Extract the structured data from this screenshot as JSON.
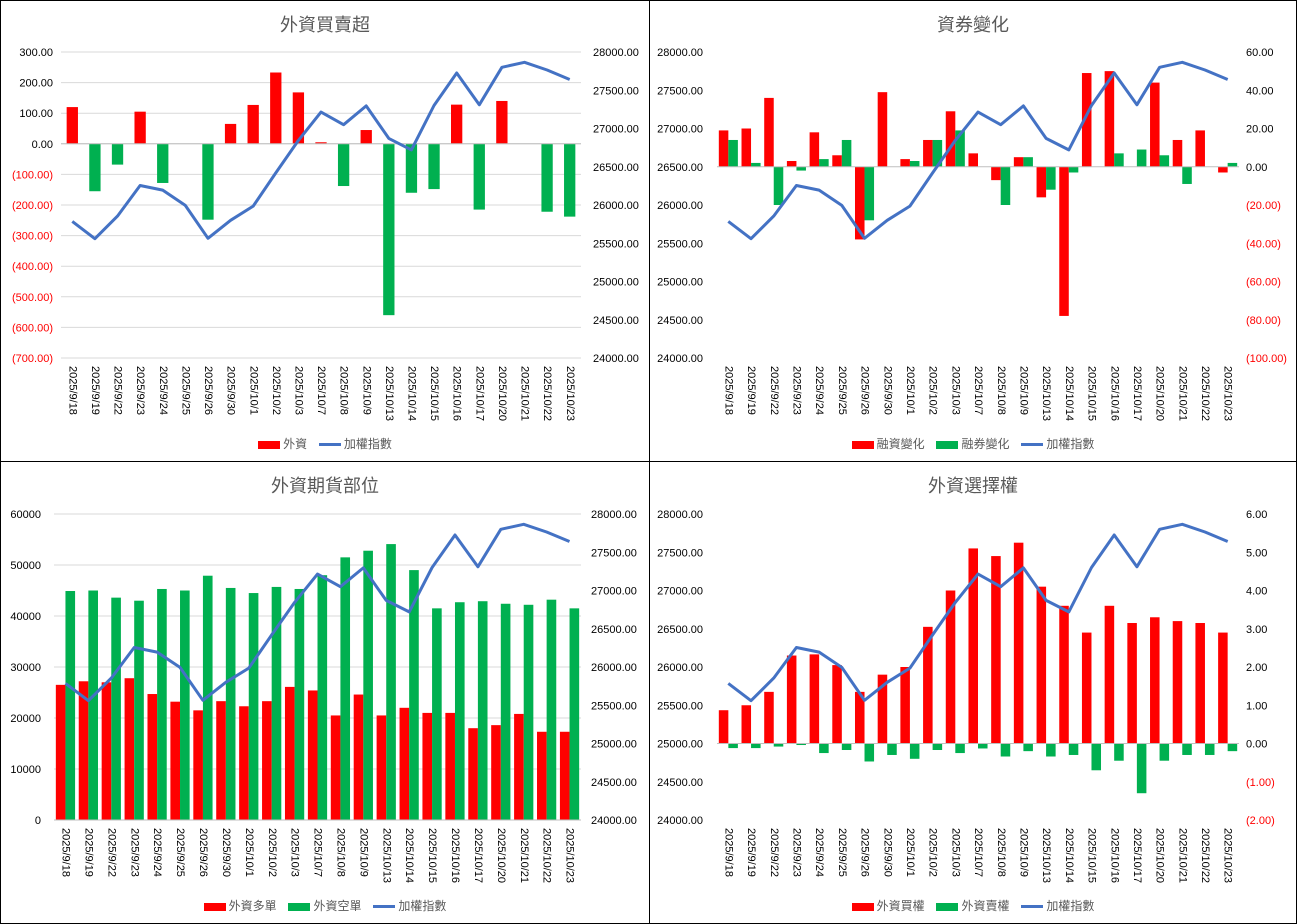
{
  "chart_data": [
    {
      "type": "bar",
      "title": "外資買賣超",
      "categories": [
        "2025/9/18",
        "2025/9/19",
        "2025/9/22",
        "2025/9/23",
        "2025/9/24",
        "2025/9/25",
        "2025/9/26",
        "2025/9/30",
        "2025/10/1",
        "2025/10/2",
        "2025/10/3",
        "2025/10/7",
        "2025/10/8",
        "2025/10/9",
        "2025/10/13",
        "2025/10/14",
        "2025/10/15",
        "2025/10/16",
        "2025/10/17",
        "2025/10/20",
        "2025/10/21",
        "2025/10/22",
        "2025/10/23"
      ],
      "series": [
        {
          "name": "外資",
          "kind": "bar",
          "axis": "left",
          "color_mode": "sign",
          "values": [
            120,
            -155,
            -68,
            105,
            -128,
            0,
            -248,
            65,
            127,
            233,
            168,
            5,
            -138,
            45,
            -560,
            -160,
            -148,
            128,
            -215,
            140,
            0,
            -222,
            -238
          ]
        }
      ],
      "line": {
        "name": "加權指數",
        "axis": "right",
        "color": "#4472C4",
        "values": [
          25785,
          25560,
          25855,
          26255,
          26195,
          25995,
          25565,
          25800,
          25985,
          26420,
          26845,
          27215,
          27050,
          27295,
          26870,
          26720,
          27300,
          27725,
          27310,
          27800,
          27865,
          27765,
          27640
        ]
      },
      "left_axis": {
        "min": -700,
        "max": 300,
        "step": 100,
        "decimals": 2,
        "neg_paren": true
      },
      "right_axis": {
        "min": 24000,
        "max": 28000,
        "step": 500,
        "decimals": 2,
        "neg_paren": false
      },
      "colors": {
        "pos": "#FF0000",
        "neg": "#00B050",
        "legend_bar": "#FF0000"
      },
      "grid": true,
      "legend": "bottom"
    },
    {
      "type": "bar",
      "title": "資券變化",
      "categories": [
        "2025/9/18",
        "2025/9/19",
        "2025/9/22",
        "2025/9/23",
        "2025/9/24",
        "2025/9/25",
        "2025/9/26",
        "2025/9/30",
        "2025/10/1",
        "2025/10/2",
        "2025/10/3",
        "2025/10/7",
        "2025/10/8",
        "2025/10/9",
        "2025/10/13",
        "2025/10/14",
        "2025/10/15",
        "2025/10/16",
        "2025/10/17",
        "2025/10/20",
        "2025/10/21",
        "2025/10/22",
        "2025/10/23"
      ],
      "series": [
        {
          "name": "融資變化",
          "kind": "bar",
          "axis": "right",
          "color": "#FF0000",
          "values": [
            19,
            20,
            36,
            3,
            18,
            6,
            -38,
            39,
            4,
            14,
            29,
            7,
            -7,
            5,
            -16,
            -78,
            49,
            50,
            0,
            44,
            14,
            19,
            -3
          ]
        },
        {
          "name": "融券變化",
          "kind": "bar",
          "axis": "right",
          "color": "#00B050",
          "values": [
            14,
            2,
            -20,
            -2,
            4,
            14,
            -28,
            0,
            3,
            14,
            19,
            0,
            -20,
            5,
            -12,
            -3,
            0,
            7,
            9,
            6,
            -9,
            0,
            2
          ]
        }
      ],
      "line": {
        "name": "加權指數",
        "axis": "left",
        "color": "#4472C4",
        "values": [
          25785,
          25560,
          25855,
          26255,
          26195,
          25995,
          25565,
          25800,
          25985,
          26420,
          26845,
          27215,
          27050,
          27295,
          26870,
          26720,
          27300,
          27725,
          27310,
          27800,
          27865,
          27765,
          27640
        ]
      },
      "left_axis": {
        "min": 24000,
        "max": 28000,
        "step": 500,
        "decimals": 2,
        "neg_paren": false
      },
      "right_axis": {
        "min": -100,
        "max": 60,
        "step": 20,
        "decimals": 2,
        "neg_paren": true
      },
      "grid": false,
      "legend": "bottom"
    },
    {
      "type": "bar",
      "title": "外資期貨部位",
      "categories": [
        "2025/9/18",
        "2025/9/19",
        "2025/9/22",
        "2025/9/23",
        "2025/9/24",
        "2025/9/25",
        "2025/9/26",
        "2025/9/30",
        "2025/10/1",
        "2025/10/2",
        "2025/10/3",
        "2025/10/7",
        "2025/10/8",
        "2025/10/9",
        "2025/10/13",
        "2025/10/14",
        "2025/10/15",
        "2025/10/16",
        "2025/10/17",
        "2025/10/20",
        "2025/10/21",
        "2025/10/22",
        "2025/10/23"
      ],
      "series": [
        {
          "name": "外資多單",
          "kind": "bar",
          "axis": "left",
          "color": "#FF0000",
          "values": [
            26500,
            27200,
            27000,
            27800,
            24700,
            23200,
            21500,
            23300,
            22300,
            23300,
            26100,
            25400,
            20500,
            24600,
            20500,
            22000,
            21000,
            21000,
            18000,
            18600,
            20800,
            17300,
            17300
          ]
        },
        {
          "name": "外資空單",
          "kind": "bar",
          "axis": "left",
          "color": "#00B050",
          "values": [
            44900,
            45000,
            43600,
            43000,
            45300,
            45000,
            47900,
            45500,
            44500,
            45700,
            45300,
            48000,
            51500,
            52800,
            54100,
            49000,
            41500,
            42700,
            42900,
            42400,
            42200,
            43200,
            41500
          ]
        }
      ],
      "line": {
        "name": "加權指數",
        "axis": "right",
        "color": "#4472C4",
        "values": [
          25785,
          25560,
          25855,
          26255,
          26195,
          25995,
          25565,
          25800,
          25985,
          26420,
          26845,
          27215,
          27050,
          27295,
          26870,
          26720,
          27300,
          27725,
          27310,
          27800,
          27865,
          27765,
          27640
        ]
      },
      "left_axis": {
        "min": 0,
        "max": 60000,
        "step": 10000,
        "decimals": 0,
        "neg_paren": false
      },
      "right_axis": {
        "min": 24000,
        "max": 28000,
        "step": 500,
        "decimals": 2,
        "neg_paren": false
      },
      "grid": true,
      "legend": "bottom"
    },
    {
      "type": "bar",
      "title": "外資選擇權",
      "categories": [
        "2025/9/18",
        "2025/9/19",
        "2025/9/22",
        "2025/9/23",
        "2025/9/24",
        "2025/9/25",
        "2025/9/26",
        "2025/9/30",
        "2025/10/1",
        "2025/10/2",
        "2025/10/3",
        "2025/10/7",
        "2025/10/8",
        "2025/10/9",
        "2025/10/13",
        "2025/10/14",
        "2025/10/15",
        "2025/10/16",
        "2025/10/17",
        "2025/10/20",
        "2025/10/21",
        "2025/10/22",
        "2025/10/23"
      ],
      "series": [
        {
          "name": "外資買權",
          "kind": "bar",
          "axis": "right",
          "color": "#FF0000",
          "values": [
            0.87,
            1.0,
            1.35,
            2.3,
            2.33,
            2.05,
            1.35,
            1.8,
            2.0,
            3.05,
            4.0,
            5.1,
            4.9,
            5.25,
            4.1,
            3.6,
            2.9,
            3.6,
            3.15,
            3.3,
            3.2,
            3.15,
            2.9
          ]
        },
        {
          "name": "外資賣權",
          "kind": "bar",
          "axis": "right",
          "color": "#00B050",
          "values": [
            -0.12,
            -0.12,
            -0.08,
            -0.04,
            -0.25,
            -0.17,
            -0.47,
            -0.3,
            -0.4,
            -0.17,
            -0.25,
            -0.13,
            -0.34,
            -0.2,
            -0.34,
            -0.3,
            -0.7,
            -0.45,
            -1.3,
            -0.45,
            -0.3,
            -0.3,
            -0.2
          ]
        }
      ],
      "line": {
        "name": "加權指數",
        "axis": "left",
        "color": "#4472C4",
        "values": [
          25785,
          25560,
          25855,
          26255,
          26195,
          25995,
          25565,
          25800,
          25985,
          26420,
          26845,
          27215,
          27050,
          27295,
          26870,
          26720,
          27300,
          27725,
          27310,
          27800,
          27865,
          27765,
          27640
        ]
      },
      "left_axis": {
        "min": 24000,
        "max": 28000,
        "step": 500,
        "decimals": 2,
        "neg_paren": false
      },
      "right_axis": {
        "min": -2,
        "max": 6,
        "step": 1,
        "decimals": 2,
        "neg_paren": true
      },
      "grid": false,
      "legend": "bottom"
    }
  ]
}
